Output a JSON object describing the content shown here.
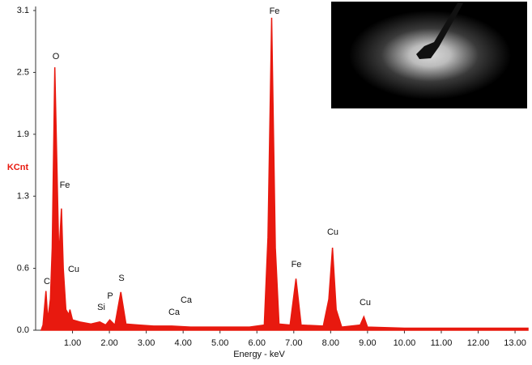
{
  "chart_data": {
    "type": "area",
    "y_label": "KCnt",
    "x_label": "Energy - keV",
    "color": "#e8190f",
    "x": [
      0.15,
      0.2,
      0.28,
      0.33,
      0.4,
      0.45,
      0.52,
      0.58,
      0.63,
      0.7,
      0.75,
      0.82,
      0.9,
      0.93,
      1.0,
      1.2,
      1.5,
      1.74,
      1.9,
      2.01,
      2.15,
      2.31,
      2.45,
      2.8,
      3.2,
      3.69,
      4.2,
      5.0,
      5.8,
      6.2,
      6.3,
      6.4,
      6.5,
      6.6,
      6.9,
      7.06,
      7.2,
      7.8,
      7.95,
      8.05,
      8.15,
      8.3,
      8.8,
      8.9,
      9.0,
      10.0,
      11.0,
      12.0,
      13.0,
      13.35
    ],
    "values": [
      0,
      0.05,
      0.38,
      0.1,
      0.3,
      0.8,
      2.55,
      1.55,
      0.7,
      1.18,
      0.6,
      0.2,
      0.15,
      0.2,
      0.1,
      0.08,
      0.06,
      0.08,
      0.05,
      0.1,
      0.05,
      0.37,
      0.06,
      0.05,
      0.04,
      0.04,
      0.03,
      0.03,
      0.03,
      0.05,
      0.9,
      3.03,
      0.8,
      0.06,
      0.05,
      0.5,
      0.05,
      0.04,
      0.3,
      0.8,
      0.2,
      0.03,
      0.05,
      0.13,
      0.03,
      0.02,
      0.02,
      0.02,
      0.02,
      0.02
    ],
    "annotations": [
      "C",
      "O",
      "Fe",
      "Cu",
      "Si",
      "P",
      "S",
      "Ca",
      "Ca",
      "Fe",
      "Fe",
      "Cu",
      "Cu"
    ],
    "xlim": [
      0,
      13.35
    ],
    "ylim": [
      0,
      3.1
    ],
    "xticks": [
      {
        "value": 1,
        "label": "1.00"
      },
      {
        "value": 2,
        "label": "2.00"
      },
      {
        "value": 3,
        "label": "3.00"
      },
      {
        "value": 4,
        "label": "4.00"
      },
      {
        "value": 5,
        "label": "5.00"
      },
      {
        "value": 6,
        "label": "6.00"
      },
      {
        "value": 7,
        "label": "7.00"
      },
      {
        "value": 8,
        "label": "8.00"
      },
      {
        "value": 9,
        "label": "9.00"
      },
      {
        "value": 10,
        "label": "10.00"
      },
      {
        "value": 11,
        "label": "11.00"
      },
      {
        "value": 12,
        "label": "12.00"
      },
      {
        "value": 13,
        "label": "13.00"
      }
    ],
    "yticks": [
      {
        "value": 0,
        "label": "0.0"
      },
      0.6,
      1.3,
      1.9,
      2.5,
      3.1
    ]
  }
}
